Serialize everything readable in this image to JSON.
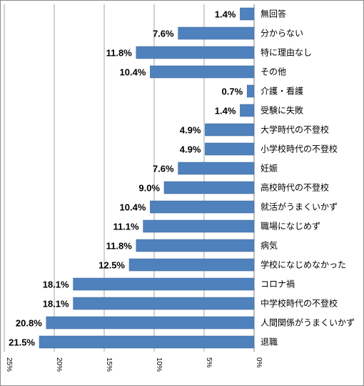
{
  "chart_data": {
    "type": "bar",
    "orientation": "horizontal-reversed",
    "categories": [
      "無回答",
      "分からない",
      "特に理由なし",
      "その他",
      "介護・看護",
      "受験に失敗",
      "大学時代の不登校",
      "小学校時代の不登校",
      "妊娠",
      "高校時代の不登校",
      "就活がうまくいかず",
      "職場になじめず",
      "病気",
      "学校になじめなかった",
      "コロナ禍",
      "中学校時代の不登校",
      "人間関係がうまくいかず",
      "退職"
    ],
    "values": [
      1.4,
      7.6,
      11.8,
      10.4,
      0.7,
      1.4,
      4.9,
      4.9,
      7.6,
      9.0,
      10.4,
      11.1,
      11.8,
      12.5,
      18.1,
      18.1,
      20.8,
      21.5
    ],
    "value_labels": [
      "1.4%",
      "7.6%",
      "11.8%",
      "10.4%",
      "0.7%",
      "1.4%",
      "4.9%",
      "4.9%",
      "7.6%",
      "9.0%",
      "10.4%",
      "11.1%",
      "11.8%",
      "12.5%",
      "18.1%",
      "18.1%",
      "20.8%",
      "21.5%"
    ],
    "xlim": [
      0,
      25
    ],
    "x_ticks": [
      "0%",
      "5%",
      "10%",
      "15%",
      "20%",
      "25%"
    ],
    "x_tick_values": [
      0,
      5,
      10,
      15,
      20,
      25
    ],
    "x_axis_reversed": true,
    "tick_label_rotation": "vertical",
    "grid": true,
    "bar_color": "#4f81bd",
    "bar_border_color": "#3a6496",
    "grid_color": "#a6a6a6",
    "title": "",
    "xlabel": "",
    "ylabel": ""
  }
}
